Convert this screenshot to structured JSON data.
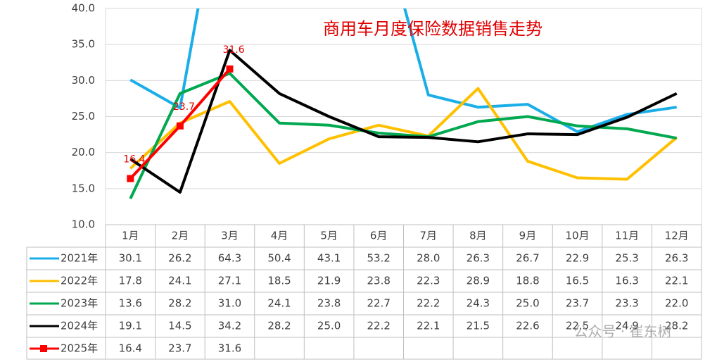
{
  "chart_data": {
    "type": "line",
    "title": "商用车月度保险数据销售走势",
    "watermark": "公众号 · 崔东树",
    "categories": [
      "1月",
      "2月",
      "3月",
      "4月",
      "5月",
      "6月",
      "7月",
      "8月",
      "9月",
      "10月",
      "11月",
      "12月"
    ],
    "ylim": [
      10,
      40
    ],
    "yticks": [
      {
        "value": 10,
        "label": "10.0"
      },
      {
        "value": 15,
        "label": "15.0"
      },
      {
        "value": 20,
        "label": "20.0"
      },
      {
        "value": 25,
        "label": "25.0"
      },
      {
        "value": 30,
        "label": "30.0"
      },
      {
        "value": 35,
        "label": "35.0"
      },
      {
        "value": 40,
        "label": "40.0"
      }
    ],
    "grid": true,
    "series": [
      {
        "name": "2021年",
        "color": "#1aaee8",
        "values": [
          30.1,
          26.2,
          64.3,
          50.4,
          43.1,
          53.2,
          28.0,
          26.3,
          26.7,
          22.9,
          25.3,
          26.3
        ],
        "value_labels": [
          "30.1",
          "26.2",
          "64.3",
          "50.4",
          "43.1",
          "53.2",
          "28.0",
          "26.3",
          "26.7",
          "22.9",
          "25.3",
          "26.3"
        ]
      },
      {
        "name": "2022年",
        "color": "#ffc000",
        "values": [
          17.8,
          24.1,
          27.1,
          18.5,
          21.9,
          23.8,
          22.3,
          28.9,
          18.8,
          16.5,
          16.3,
          22.1
        ],
        "value_labels": [
          "17.8",
          "24.1",
          "27.1",
          "18.5",
          "21.9",
          "23.8",
          "22.3",
          "28.9",
          "18.8",
          "16.5",
          "16.3",
          "22.1"
        ]
      },
      {
        "name": "2023年",
        "color": "#00a84f",
        "values": [
          13.6,
          28.2,
          31.0,
          24.1,
          23.8,
          22.7,
          22.2,
          24.3,
          25.0,
          23.7,
          23.3,
          22.0
        ],
        "value_labels": [
          "13.6",
          "28.2",
          "31.0",
          "24.1",
          "23.8",
          "22.7",
          "22.2",
          "24.3",
          "25.0",
          "23.7",
          "23.3",
          "22.0"
        ]
      },
      {
        "name": "2024年",
        "color": "#000000",
        "values": [
          19.1,
          14.5,
          34.2,
          28.2,
          25.0,
          22.2,
          22.1,
          21.5,
          22.6,
          22.5,
          24.9,
          28.2
        ],
        "value_labels": [
          "19.1",
          "14.5",
          "34.2",
          "28.2",
          "25.0",
          "22.2",
          "22.1",
          "21.5",
          "22.6",
          "22.5",
          "24.9",
          "28.2"
        ]
      },
      {
        "name": "2025年",
        "color": "#ff0000",
        "marker": "square",
        "data_labels": true,
        "values": [
          16.4,
          23.7,
          31.6,
          null,
          null,
          null,
          null,
          null,
          null,
          null,
          null,
          null
        ],
        "value_labels": [
          "16.4",
          "23.7",
          "31.6",
          null,
          null,
          null,
          null,
          null,
          null,
          null,
          null,
          null
        ]
      }
    ]
  }
}
